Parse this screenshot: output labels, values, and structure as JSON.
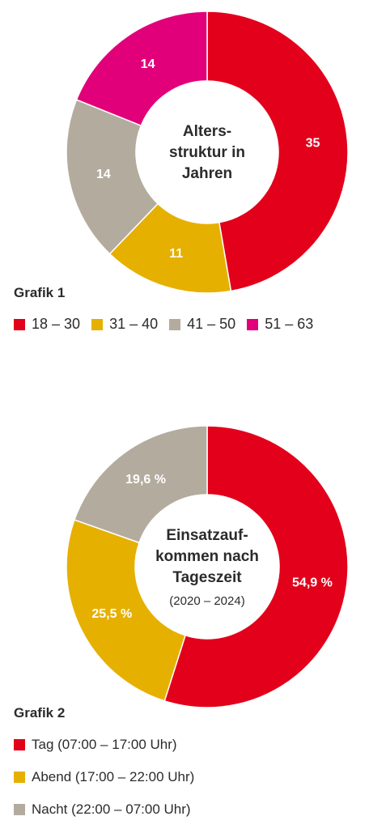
{
  "chart_data": [
    {
      "type": "pie",
      "title": "Altersstruktur in Jahren",
      "title_lines": [
        "Alters-",
        "struktur in",
        "Jahren"
      ],
      "caption": "Grafik 1",
      "categories": [
        "18 – 30",
        "31 – 40",
        "41 – 50",
        "51 – 63"
      ],
      "values": [
        35,
        11,
        14,
        14
      ],
      "labels": [
        "35",
        "11",
        "14",
        "14"
      ],
      "colors": [
        "#E2001A",
        "#E6B000",
        "#B3AC9E",
        "#E2007A"
      ],
      "legend_position": "bottom"
    },
    {
      "type": "pie",
      "title": "Einsatzaufkommen nach Tageszeit",
      "title_lines": [
        "Einsatzauf-",
        "kommen nach",
        "Tageszeit"
      ],
      "subtitle": "(2020 – 2024)",
      "caption": "Grafik 2",
      "categories": [
        "Tag (07:00 – 17:00 Uhr)",
        "Abend (17:00 – 22:00 Uhr)",
        "Nacht (22:00 – 07:00 Uhr)"
      ],
      "values": [
        54.9,
        25.5,
        19.6
      ],
      "labels": [
        "54,9 %",
        "25,5 %",
        "19,6 %"
      ],
      "colors": [
        "#E2001A",
        "#E6B000",
        "#B3AC9E"
      ],
      "legend_position": "bottom"
    }
  ]
}
